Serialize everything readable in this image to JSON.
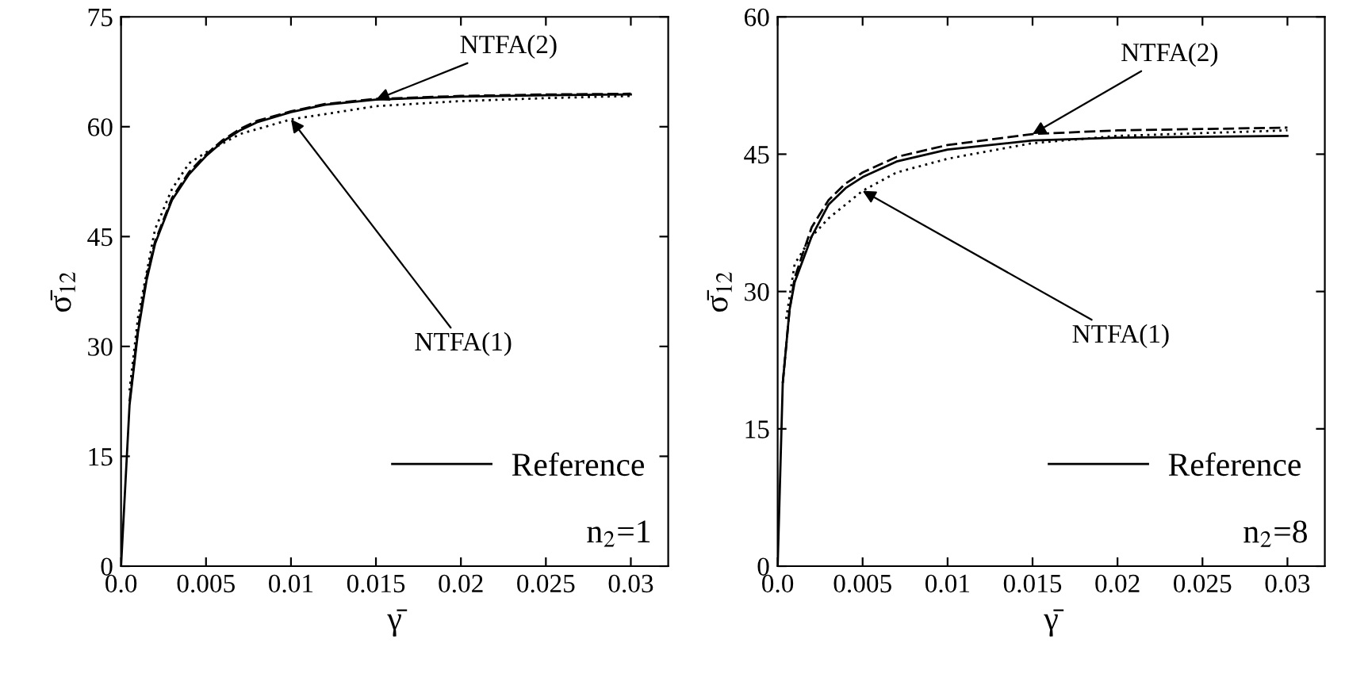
{
  "chart_data": [
    {
      "type": "line",
      "xlabel": "γ̄",
      "ylabel": "σ̄$_{12}$",
      "xlim": [
        0,
        0.0322
      ],
      "ylim": [
        0,
        75
      ],
      "xticks": [
        {
          "value": 0,
          "label": "0.0"
        },
        0.005,
        0.01,
        0.015,
        0.02,
        0.025,
        0.03
      ],
      "yticks": [
        0,
        15,
        30,
        45,
        60,
        75
      ],
      "legend": "bottom right",
      "grid": false,
      "series": [
        {
          "name": "Reference",
          "color": "#000000",
          "line_style": "solid",
          "x": [
            0,
            0.0005,
            0.001,
            0.0015,
            0.002,
            0.003,
            0.004,
            0.005,
            0.006,
            0.007,
            0.008,
            0.01,
            0.012,
            0.015,
            0.02,
            0.025,
            0.03
          ],
          "values": [
            0,
            22,
            32,
            39,
            44,
            50,
            53.5,
            56,
            58,
            59.5,
            60.6,
            62,
            63,
            63.7,
            64.1,
            64.3,
            64.4
          ]
        },
        {
          "color": "#000000",
          "line_style": "dashed",
          "x": [
            0.0005,
            0.001,
            0.0015,
            0.002,
            0.003,
            0.004,
            0.005,
            0.006,
            0.007,
            0.008,
            0.01,
            0.012,
            0.015,
            0.02,
            0.025,
            0.03
          ],
          "values": [
            22.5,
            32.5,
            39.5,
            44.3,
            50.3,
            53.8,
            56.2,
            58.2,
            59.7,
            60.8,
            62.1,
            63.1,
            63.8,
            64.2,
            64.4,
            64.5
          ]
        },
        {
          "color": "#000000",
          "line_style": "dotted",
          "x": [
            0.0005,
            0.001,
            0.002,
            0.003,
            0.004,
            0.005,
            0.007,
            0.01,
            0.015,
            0.02,
            0.025,
            0.03
          ],
          "values": [
            24,
            34,
            46,
            51.5,
            55,
            56.5,
            59,
            61,
            62.8,
            63.5,
            63.9,
            64.2
          ]
        }
      ],
      "annotations": [
        {
          "text": "NTFA(2)",
          "x": 0.015,
          "y": 63.7
        },
        {
          "text": "NTFA(1)",
          "x": 0.01,
          "y": 61
        },
        "n$_{2}$=1"
      ]
    },
    {
      "type": "line",
      "xlabel": "γ̄",
      "ylabel": "σ̄$_{12}$",
      "xlim": [
        0,
        0.0322
      ],
      "ylim": [
        0,
        60
      ],
      "xticks": [
        {
          "value": 0,
          "label": "0.0"
        },
        0.005,
        0.01,
        0.015,
        0.02,
        0.025,
        0.03
      ],
      "yticks": [
        0,
        15,
        30,
        45,
        60
      ],
      "legend": "bottom right",
      "grid": false,
      "series": [
        {
          "name": "Reference",
          "color": "#000000",
          "line_style": "solid",
          "x": [
            0,
            0.0003,
            0.0007,
            0.001,
            0.002,
            0.003,
            0.004,
            0.005,
            0.007,
            0.01,
            0.015,
            0.02,
            0.03
          ],
          "values": [
            0,
            20,
            28,
            31,
            36,
            39.5,
            41.3,
            42.5,
            44.2,
            45.5,
            46.5,
            46.8,
            47
          ]
        },
        {
          "color": "#000000",
          "line_style": "dashed",
          "x": [
            0.0003,
            0.0007,
            0.001,
            0.002,
            0.003,
            0.004,
            0.005,
            0.007,
            0.01,
            0.015,
            0.02,
            0.03
          ],
          "values": [
            20,
            28,
            31.5,
            37,
            40,
            41.8,
            43,
            44.7,
            46,
            47.2,
            47.6,
            47.9
          ]
        },
        {
          "color": "#000000",
          "line_style": "dotted",
          "x": [
            0.0005,
            0.001,
            0.002,
            0.003,
            0.005,
            0.007,
            0.01,
            0.015,
            0.02,
            0.03
          ],
          "values": [
            27,
            33,
            36,
            38,
            41,
            43,
            44.5,
            46.2,
            47,
            47.6
          ]
        }
      ],
      "annotations": [
        {
          "text": "NTFA(2)",
          "x": 0.015,
          "y": 47.2
        },
        {
          "text": "NTFA(1)",
          "x": 0.005,
          "y": 41
        },
        "n$_{2}$=8"
      ]
    }
  ]
}
